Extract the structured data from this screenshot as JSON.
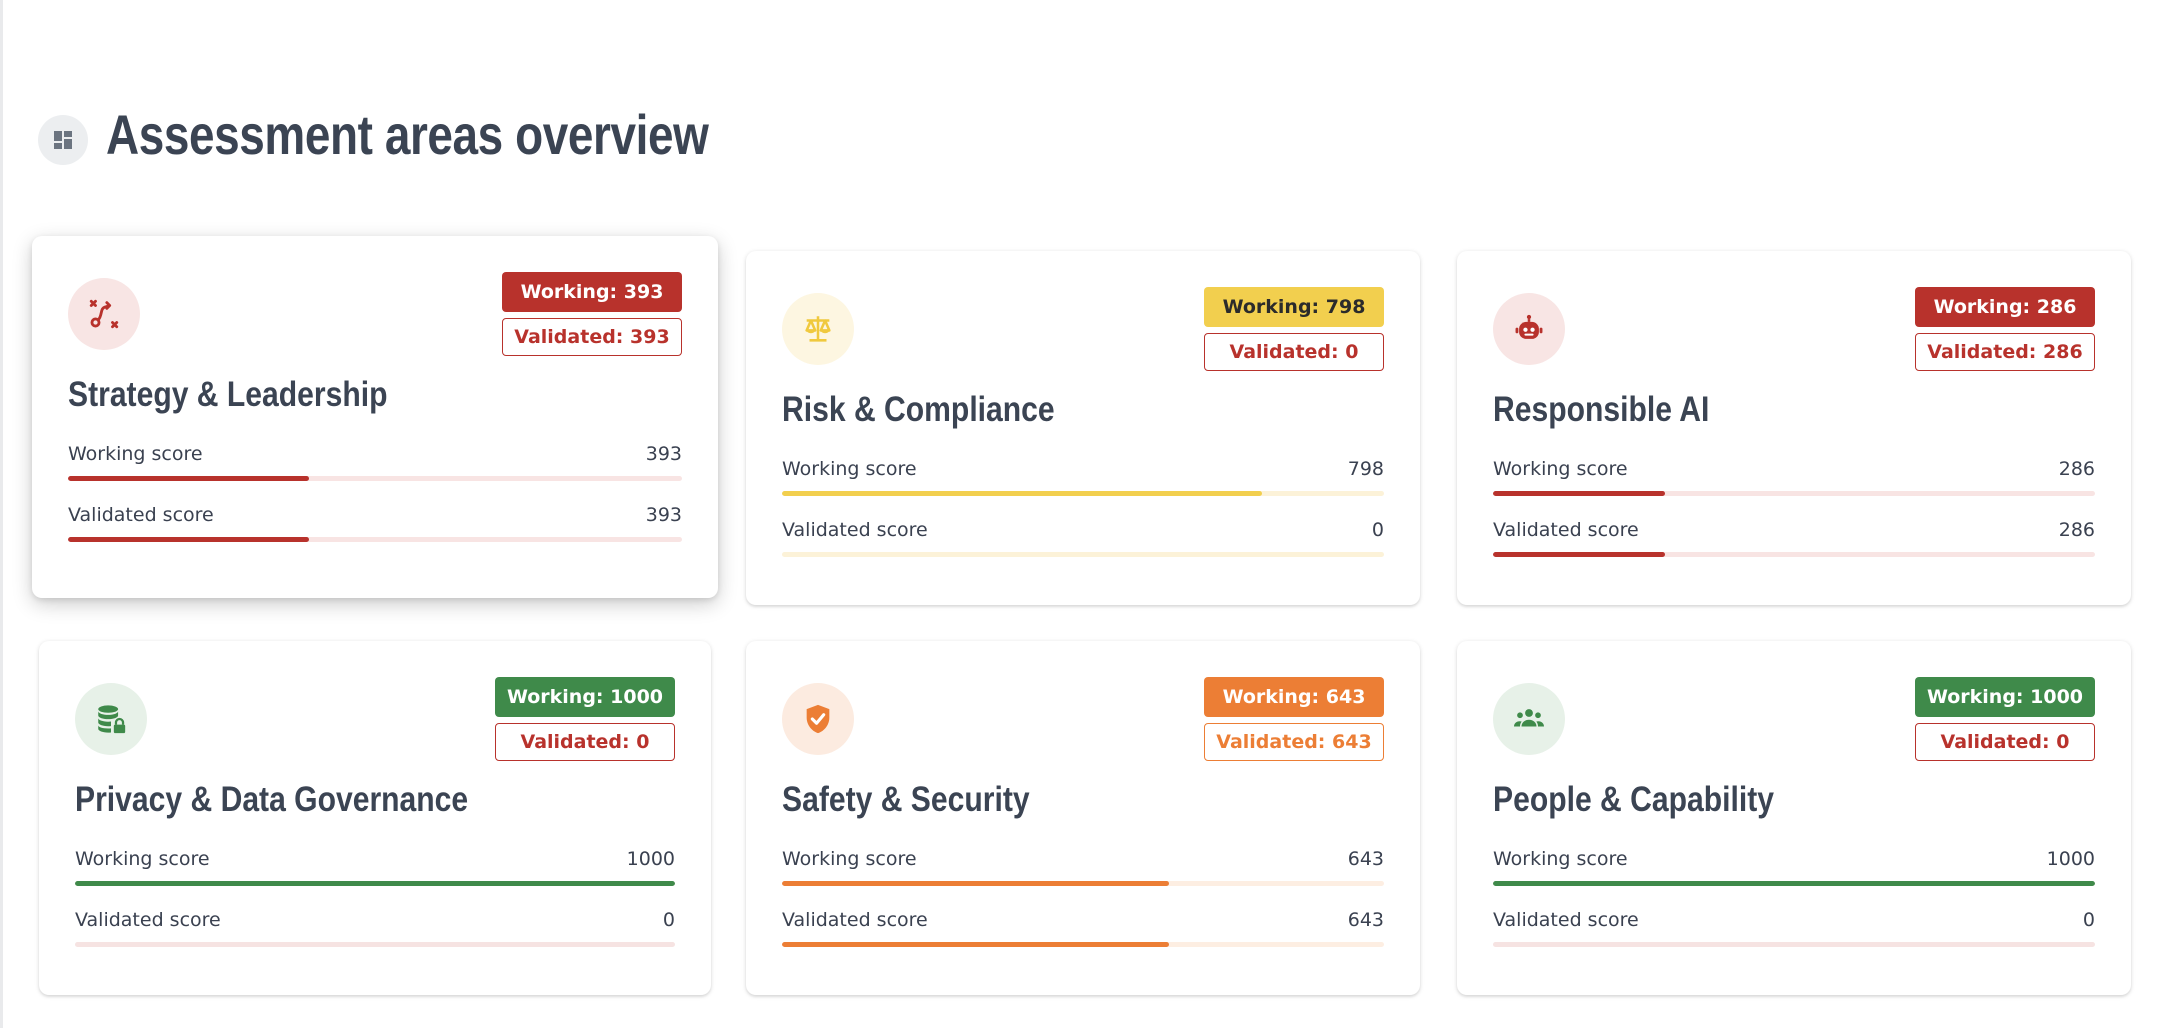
{
  "page": {
    "title": "Assessment areas overview",
    "icon": "dashboard-icon"
  },
  "labels": {
    "working_score": "Working score",
    "validated_score": "Validated score"
  },
  "max_score": 1000,
  "areas": [
    {
      "title": "Strategy & Leadership",
      "icon": "strategy-icon",
      "working_badge": "Working: 393",
      "validated_badge": "Validated: 393",
      "working_value": "393",
      "validated_value": "393",
      "working_fraction": 0.393,
      "validated_fraction": 0.393,
      "working_color": "#b8322c",
      "validated_color": "#b8322c",
      "icon_bg": "#f8e5e4",
      "track_color": "#f8e4e3"
    },
    {
      "title": "Risk & Compliance",
      "icon": "scales-icon",
      "working_badge": "Working: 798",
      "validated_badge": "Validated: 0",
      "working_value": "798",
      "validated_value": "0",
      "working_fraction": 0.798,
      "validated_fraction": 0,
      "working_color": "#f2cf4e",
      "validated_color": "#b8322c",
      "icon_bg": "#fdf6e1",
      "track_color": "#fcf2d8"
    },
    {
      "title": "Responsible AI",
      "icon": "robot-icon",
      "working_badge": "Working: 286",
      "validated_badge": "Validated: 286",
      "working_value": "286",
      "validated_value": "286",
      "working_fraction": 0.286,
      "validated_fraction": 0.286,
      "working_color": "#b8322c",
      "validated_color": "#b8322c",
      "icon_bg": "#f8e5e4",
      "track_color": "#f8e4e3"
    },
    {
      "title": "Privacy & Data Governance",
      "icon": "database-lock-icon",
      "working_badge": "Working: 1000",
      "validated_badge": "Validated: 0",
      "working_value": "1000",
      "validated_value": "0",
      "working_fraction": 1.0,
      "validated_fraction": 0,
      "working_color": "#3f8a4a",
      "validated_color": "#b8322c",
      "icon_bg": "#e7f1e8",
      "track_color": "#f6e3e2"
    },
    {
      "title": "Safety & Security",
      "icon": "shield-check-icon",
      "working_badge": "Working: 643",
      "validated_badge": "Validated: 643",
      "working_value": "643",
      "validated_value": "643",
      "working_fraction": 0.643,
      "validated_fraction": 0.643,
      "working_color": "#ec7e35",
      "validated_color": "#ec7e35",
      "icon_bg": "#fcebe0",
      "track_color": "#fdeee2"
    },
    {
      "title": "People & Capability",
      "icon": "people-icon",
      "working_badge": "Working: 1000",
      "validated_badge": "Validated: 0",
      "working_value": "1000",
      "validated_value": "0",
      "working_fraction": 1.0,
      "validated_fraction": 0,
      "working_color": "#3f8a4a",
      "validated_color": "#b8322c",
      "icon_bg": "#e7f1e8",
      "track_color": "#f6e3e2"
    }
  ]
}
